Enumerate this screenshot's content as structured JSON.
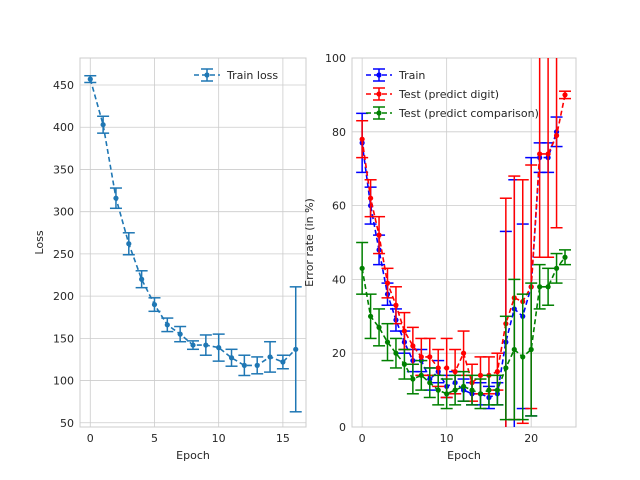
{
  "chart_data": [
    {
      "type": "line",
      "title": "",
      "xlabel": "Epoch",
      "ylabel": "Loss",
      "xlim": [
        -0.8,
        16.8
      ],
      "ylim": [
        45,
        482
      ],
      "xticks": [
        0,
        5,
        10,
        15
      ],
      "yticks": [
        50,
        100,
        150,
        200,
        250,
        300,
        350,
        400,
        450
      ],
      "grid": true,
      "legend_placement": "top-right",
      "series": [
        {
          "name": "Train loss",
          "color": "#1f77b4",
          "linestyle": "dashed",
          "x": [
            0,
            1,
            2,
            3,
            4,
            5,
            6,
            7,
            8,
            9,
            10,
            11,
            12,
            13,
            14,
            15,
            16
          ],
          "y": [
            457,
            403,
            316,
            262,
            220,
            190,
            166,
            155,
            142,
            142,
            139,
            127,
            118,
            118,
            128,
            122,
            137
          ],
          "yerr": [
            4,
            10,
            12,
            13,
            10,
            8,
            8,
            9,
            5,
            12,
            16,
            10,
            12,
            10,
            18,
            8,
            74
          ]
        }
      ]
    },
    {
      "type": "line",
      "title": "",
      "xlabel": "Epoch",
      "ylabel": "Error rate (in %)",
      "xlim": [
        -1.2,
        25.3
      ],
      "ylim": [
        0,
        100
      ],
      "xticks": [
        0,
        10,
        20
      ],
      "yticks": [
        0,
        20,
        40,
        60,
        80,
        100
      ],
      "grid": true,
      "legend_placement": "top-left",
      "series": [
        {
          "name": "Train",
          "color": "#0000ff",
          "linestyle": "dashed",
          "x": [
            0,
            1,
            2,
            3,
            4,
            5,
            6,
            7,
            8,
            9,
            10,
            11,
            12,
            13,
            14,
            15,
            16,
            17,
            18,
            19,
            20,
            21,
            22,
            23
          ],
          "y": [
            77,
            60,
            48,
            36,
            29,
            23,
            18,
            18,
            13,
            15,
            11,
            12,
            10,
            9,
            9,
            8,
            9,
            23,
            32,
            30,
            38,
            73,
            73,
            80
          ],
          "yerr": [
            8,
            5,
            4,
            3,
            3,
            3,
            3,
            3,
            3,
            3,
            3,
            3,
            3,
            3,
            3,
            3,
            3,
            30,
            35,
            25,
            35,
            4,
            4,
            4
          ]
        },
        {
          "name": "Test (predict digit)",
          "color": "#ff0000",
          "linestyle": "dashed",
          "x": [
            0,
            1,
            2,
            3,
            4,
            5,
            6,
            7,
            8,
            9,
            10,
            11,
            12,
            13,
            14,
            15,
            16,
            17,
            18,
            19,
            20,
            21,
            22,
            23,
            24
          ],
          "y": [
            78,
            62,
            52,
            39,
            33,
            26,
            22,
            19,
            19,
            16,
            16,
            15,
            20,
            12,
            14,
            14,
            15,
            28,
            35,
            34,
            38,
            74,
            74,
            79,
            90
          ],
          "yerr": [
            5,
            5,
            5,
            4,
            5,
            5,
            5,
            5,
            5,
            5,
            8,
            6,
            6,
            5,
            5,
            5,
            5,
            34,
            33,
            33,
            33,
            28,
            28,
            25,
            1
          ]
        },
        {
          "name": "Test (predict comparison)",
          "color": "#008000",
          "linestyle": "dashed",
          "x": [
            0,
            1,
            2,
            3,
            4,
            5,
            6,
            7,
            8,
            9,
            10,
            11,
            12,
            13,
            14,
            15,
            16,
            17,
            18,
            19,
            20,
            21,
            22,
            23,
            24
          ],
          "y": [
            43,
            30,
            27,
            23,
            20,
            17,
            13,
            14,
            12,
            10,
            9,
            10,
            11,
            10,
            9,
            10,
            10,
            16,
            21,
            19,
            21,
            38,
            38,
            43,
            46
          ],
          "yerr": [
            7,
            6,
            5,
            5,
            4,
            4,
            4,
            4,
            4,
            4,
            4,
            4,
            4,
            4,
            4,
            4,
            4,
            14,
            19,
            17,
            18,
            6,
            5,
            4,
            2
          ]
        }
      ]
    }
  ]
}
